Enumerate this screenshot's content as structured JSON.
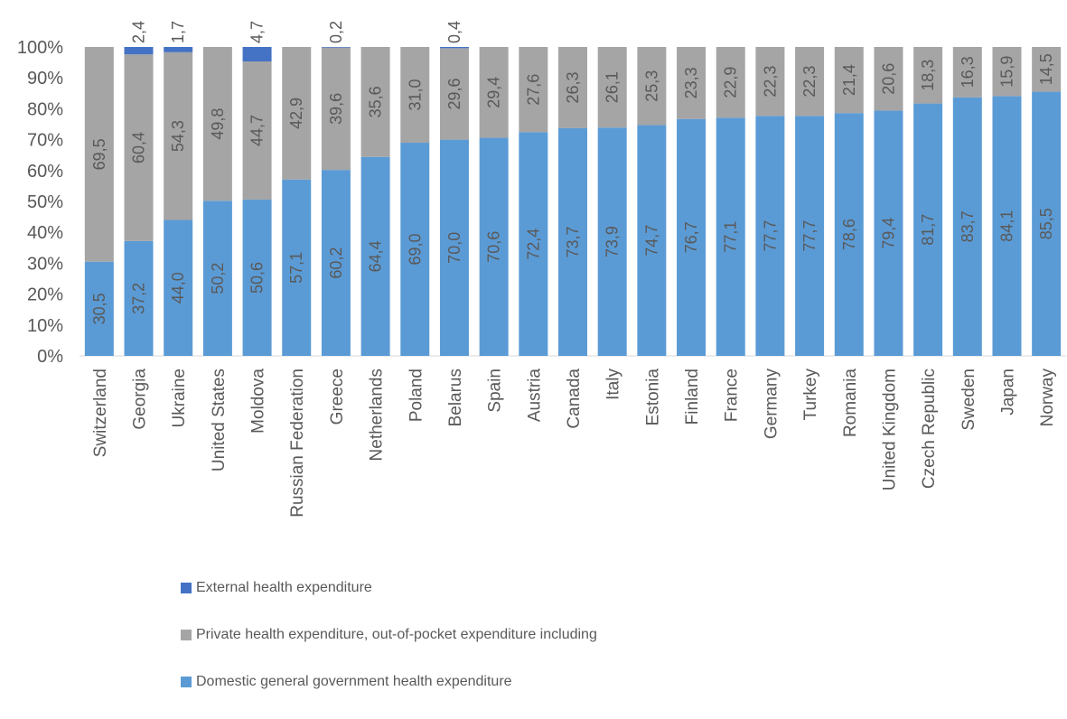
{
  "chart_data": {
    "type": "bar",
    "stacked": true,
    "percent_stacked": true,
    "title": "",
    "xlabel": "",
    "ylabel": "",
    "ylim": [
      0,
      100
    ],
    "y_ticks": [
      "0%",
      "10%",
      "20%",
      "30%",
      "40%",
      "50%",
      "60%",
      "70%",
      "80%",
      "90%",
      "100%"
    ],
    "grid": false,
    "legend_position": "bottom",
    "categories": [
      "Switzerland",
      "Georgia",
      "Ukraine",
      "United States",
      "Moldova",
      "Russian Federation",
      "Greece",
      "Netherlands",
      "Poland",
      "Belarus",
      "Spain",
      "Austria",
      "Canada",
      "Italy",
      "Estonia",
      "Finland",
      "France",
      "Germany",
      "Turkey",
      "Romania",
      "United Kingdom",
      "Czech Republic",
      "Sweden",
      "Japan",
      "Norway"
    ],
    "series": [
      {
        "name": "Domestic general government health expenditure",
        "color": "#5B9BD5",
        "values": [
          30.5,
          37.2,
          44.0,
          50.2,
          50.6,
          57.1,
          60.2,
          64.4,
          69.0,
          70.0,
          70.6,
          72.4,
          73.7,
          73.9,
          74.7,
          76.7,
          77.1,
          77.7,
          77.7,
          78.6,
          79.4,
          81.7,
          83.7,
          84.1,
          85.5
        ],
        "labels": [
          "30,5",
          "37,2",
          "44,0",
          "50,2",
          "50,6",
          "57,1",
          "60,2",
          "64,4",
          "69,0",
          "70,0",
          "70,6",
          "72,4",
          "73,7",
          "73,9",
          "74,7",
          "76,7",
          "77,1",
          "77,7",
          "77,7",
          "78,6",
          "79,4",
          "81,7",
          "83,7",
          "84,1",
          "85,5"
        ]
      },
      {
        "name": "Private health expenditure, out-of-pocket expenditure including",
        "color": "#A5A5A5",
        "values": [
          69.5,
          60.4,
          54.3,
          49.8,
          44.7,
          42.9,
          39.6,
          35.6,
          31.0,
          29.6,
          29.4,
          27.6,
          26.3,
          26.1,
          25.3,
          23.3,
          22.9,
          22.3,
          22.3,
          21.4,
          20.6,
          18.3,
          16.3,
          15.9,
          14.5
        ],
        "labels": [
          "69,5",
          "60,4",
          "54,3",
          "49,8",
          "44,7",
          "42,9",
          "39,6",
          "35,6",
          "31,0",
          "29,6",
          "29,4",
          "27,6",
          "26,3",
          "26,1",
          "25,3",
          "23,3",
          "22,9",
          "22,3",
          "22,3",
          "21,4",
          "20,6",
          "18,3",
          "16,3",
          "15,9",
          "14,5"
        ]
      },
      {
        "name": "External health expenditure",
        "color": "#4472C4",
        "values": [
          0,
          2.4,
          1.7,
          0,
          4.7,
          0,
          0.2,
          0,
          0,
          0.4,
          0,
          0,
          0,
          0,
          0,
          0,
          0,
          0,
          0,
          0,
          0,
          0,
          0,
          0,
          0
        ],
        "labels": [
          "",
          "2,4",
          "1,7",
          "",
          "4,7",
          "",
          "0,2",
          "",
          "",
          "0,4",
          "",
          "",
          "",
          "",
          "",
          "",
          "",
          "",
          "",
          "",
          "",
          "",
          "",
          "",
          ""
        ]
      }
    ],
    "legend_order": [
      "External health expenditure",
      "Private health expenditure, out-of-pocket expenditure including",
      "Domestic general government health expenditure"
    ]
  }
}
